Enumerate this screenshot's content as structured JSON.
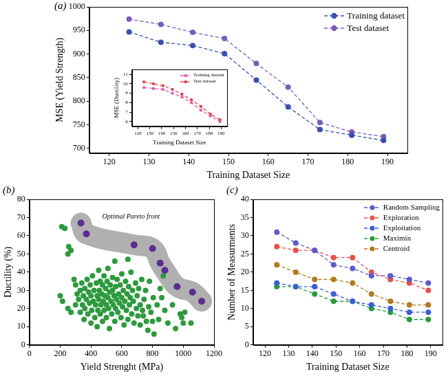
{
  "chart_data": [
    {
      "type": "line",
      "title": "(a)",
      "xlabel": "Training Dataset Size",
      "ylabel": "MSE (Yield Strength)",
      "x": [
        125,
        133,
        141,
        149,
        157,
        165,
        173,
        181,
        189
      ],
      "xlim": [
        115,
        195
      ],
      "xticks": [
        120,
        130,
        140,
        150,
        160,
        170,
        180,
        190
      ],
      "ylim": [
        690,
        1000
      ],
      "yticks": [
        700,
        750,
        800,
        850,
        900,
        950,
        1000
      ],
      "grid": false,
      "legend": "upper right",
      "series": [
        {
          "name": "Training dataset",
          "color": "#3b4fae",
          "marker": "circle",
          "line_style": "dashed",
          "values": [
            947,
            925,
            918,
            901,
            845,
            788,
            740,
            728,
            717
          ]
        },
        {
          "name": "Test dataset",
          "color": "#7a5cb8",
          "marker": "circle",
          "line_style": "dashed",
          "values": [
            974,
            963,
            946,
            933,
            880,
            830,
            755,
            735,
            725
          ]
        }
      ]
    },
    {
      "type": "line",
      "xlabel": "Training Dataset Size",
      "ylabel": "MSE (Ductility)",
      "x": [
        125,
        133,
        141,
        149,
        157,
        165,
        173,
        181,
        189
      ],
      "xlim": [
        115,
        195
      ],
      "xticks": [
        120,
        130,
        140,
        150,
        160,
        170,
        180,
        190
      ],
      "ylim": [
        5.5,
        11.5
      ],
      "yticks": [
        6,
        7,
        8,
        9,
        10,
        11
      ],
      "grid": false,
      "legend": "upper right",
      "series": [
        {
          "name": "Training dataset",
          "color": "#e060a8",
          "marker": "circle",
          "line_style": "dashed",
          "values": [
            9.6,
            9.5,
            9.4,
            9.0,
            8.6,
            8.0,
            7.2,
            6.6,
            6.0
          ]
        },
        {
          "name": "Test dataset",
          "color": "#e04050",
          "marker": "circle",
          "line_style": "dashed",
          "values": [
            10.2,
            10.0,
            9.8,
            9.4,
            8.9,
            8.3,
            7.6,
            6.8,
            6.2
          ]
        }
      ]
    },
    {
      "type": "scatter",
      "title": "(b)",
      "xlabel": "Yield Strenght (MPa)",
      "ylabel": "Ductility (%)",
      "xlim": [
        0,
        1200
      ],
      "xticks": [
        0,
        200,
        400,
        600,
        800,
        1000,
        1200
      ],
      "ylim": [
        0,
        80
      ],
      "yticks": [
        0,
        10,
        20,
        30,
        40,
        50,
        60,
        70,
        80
      ],
      "grid": false,
      "series": [
        {
          "color": "#2e9a3e",
          "marker": "circle",
          "points": [
            [
              210,
              65
            ],
            [
              230,
              64
            ],
            [
              255,
              54
            ],
            [
              250,
              50
            ],
            [
              270,
              52
            ],
            [
              200,
              27
            ],
            [
              215,
              24
            ],
            [
              250,
              20
            ],
            [
              270,
              18
            ],
            [
              290,
              36
            ],
            [
              300,
              33
            ],
            [
              300,
              22
            ],
            [
              310,
              28
            ],
            [
              320,
              25
            ],
            [
              330,
              30
            ],
            [
              330,
              18
            ],
            [
              340,
              34
            ],
            [
              345,
              22
            ],
            [
              350,
              27
            ],
            [
              355,
              14
            ],
            [
              360,
              31
            ],
            [
              360,
              20
            ],
            [
              370,
              25
            ],
            [
              375,
              36
            ],
            [
              380,
              17
            ],
            [
              385,
              29
            ],
            [
              390,
              23
            ],
            [
              395,
              33
            ],
            [
              400,
              12
            ],
            [
              400,
              27
            ],
            [
              405,
              19
            ],
            [
              410,
              38
            ],
            [
              415,
              24
            ],
            [
              420,
              30
            ],
            [
              425,
              15
            ],
            [
              430,
              22
            ],
            [
              435,
              34
            ],
            [
              440,
              27
            ],
            [
              440,
              10
            ],
            [
              445,
              19
            ],
            [
              450,
              41
            ],
            [
              450,
              25
            ],
            [
              455,
              30
            ],
            [
              460,
              17
            ],
            [
              460,
              35
            ],
            [
              465,
              22
            ],
            [
              470,
              28
            ],
            [
              475,
              13
            ],
            [
              475,
              33
            ],
            [
              480,
              24
            ],
            [
              485,
              38
            ],
            [
              485,
              19
            ],
            [
              490,
              27
            ],
            [
              495,
              31
            ],
            [
              500,
              22
            ],
            [
              500,
              15
            ],
            [
              505,
              35
            ],
            [
              510,
              26
            ],
            [
              510,
              42
            ],
            [
              515,
              20
            ],
            [
              520,
              29
            ],
            [
              520,
              9
            ],
            [
              525,
              33
            ],
            [
              530,
              24
            ],
            [
              535,
              17
            ],
            [
              540,
              30
            ],
            [
              540,
              37
            ],
            [
              545,
              22
            ],
            [
              550,
              27
            ],
            [
              555,
              13
            ],
            [
              555,
              46
            ],
            [
              560,
              32
            ],
            [
              560,
              20
            ],
            [
              565,
              25
            ],
            [
              570,
              36
            ],
            [
              575,
              18
            ],
            [
              580,
              28
            ],
            [
              585,
              23
            ],
            [
              590,
              33
            ],
            [
              595,
              15
            ],
            [
              600,
              26
            ],
            [
              600,
              39
            ],
            [
              605,
              21
            ],
            [
              610,
              30
            ],
            [
              615,
              11
            ],
            [
              620,
              24
            ],
            [
              625,
              35
            ],
            [
              630,
              19
            ],
            [
              635,
              28
            ],
            [
              640,
              47
            ],
            [
              640,
              14
            ],
            [
              645,
              32
            ],
            [
              650,
              22
            ],
            [
              655,
              26
            ],
            [
              660,
              40
            ],
            [
              665,
              17
            ],
            [
              670,
              30
            ],
            [
              675,
              24
            ],
            [
              680,
              12
            ],
            [
              690,
              34
            ],
            [
              695,
              20
            ],
            [
              700,
              27
            ],
            [
              705,
              16
            ],
            [
              710,
              31
            ],
            [
              720,
              22
            ],
            [
              720,
              11
            ],
            [
              730,
              36
            ],
            [
              735,
              19
            ],
            [
              740,
              16
            ],
            [
              745,
              25
            ],
            [
              755,
              30
            ],
            [
              760,
              13
            ],
            [
              770,
              8
            ],
            [
              775,
              21
            ],
            [
              780,
              35
            ],
            [
              790,
              18
            ],
            [
              800,
              13
            ],
            [
              805,
              26
            ],
            [
              810,
              6
            ],
            [
              830,
              22
            ],
            [
              840,
              14
            ],
            [
              850,
              31
            ],
            [
              860,
              26
            ],
            [
              870,
              38
            ],
            [
              880,
              19
            ],
            [
              900,
              12
            ],
            [
              930,
              22
            ],
            [
              950,
              9
            ],
            [
              980,
              17
            ],
            [
              990,
              15
            ],
            [
              1000,
              12
            ],
            [
              1050,
              12
            ],
            [
              1010,
              18
            ]
          ]
        },
        {
          "color": "#5b2d8e",
          "marker": "circle",
          "annotation": "Optimal Pareto front",
          "points": [
            [
              335,
              67
            ],
            [
              370,
              61
            ],
            [
              680,
              55
            ],
            [
              800,
              53
            ],
            [
              850,
              45
            ],
            [
              880,
              41
            ],
            [
              960,
              32
            ],
            [
              1060,
              29
            ],
            [
              1120,
              24
            ]
          ]
        }
      ]
    },
    {
      "type": "line",
      "title": "(c)",
      "xlabel": "Training Dataset Size",
      "ylabel": "Number of Measurments",
      "x": [
        125,
        133,
        141,
        149,
        157,
        165,
        173,
        181,
        189
      ],
      "xlim": [
        115,
        195
      ],
      "xticks": [
        120,
        130,
        140,
        150,
        160,
        170,
        180,
        190
      ],
      "ylim": [
        0,
        40
      ],
      "yticks": [
        0,
        5,
        10,
        15,
        20,
        25,
        30,
        35,
        40
      ],
      "grid": false,
      "legend": "upper right",
      "series": [
        {
          "name": "Random Sampling",
          "color": "#5a5cc8",
          "marker": "circle",
          "line_style": "dashed",
          "values": [
            31,
            28,
            26,
            22,
            21,
            19,
            19,
            18,
            17
          ]
        },
        {
          "name": "Exploration",
          "color": "#e8504a",
          "marker": "circle",
          "line_style": "dashed",
          "values": [
            27,
            26,
            26,
            24,
            24,
            20,
            18,
            17,
            15
          ]
        },
        {
          "name": "Exploitation",
          "color": "#3a5fd0",
          "marker": "circle",
          "line_style": "dashed",
          "values": [
            17,
            16,
            16,
            14,
            12,
            11,
            10,
            9,
            9
          ]
        },
        {
          "name": "Maximin",
          "color": "#2a9a40",
          "marker": "circle",
          "line_style": "dashed",
          "values": [
            16,
            16,
            14,
            12,
            12,
            10,
            9,
            7,
            7
          ]
        },
        {
          "name": "Centroid",
          "color": "#b07a20",
          "marker": "circle",
          "line_style": "dashed",
          "values": [
            22,
            20,
            18,
            18,
            17,
            14,
            12,
            11,
            11
          ]
        }
      ]
    }
  ]
}
